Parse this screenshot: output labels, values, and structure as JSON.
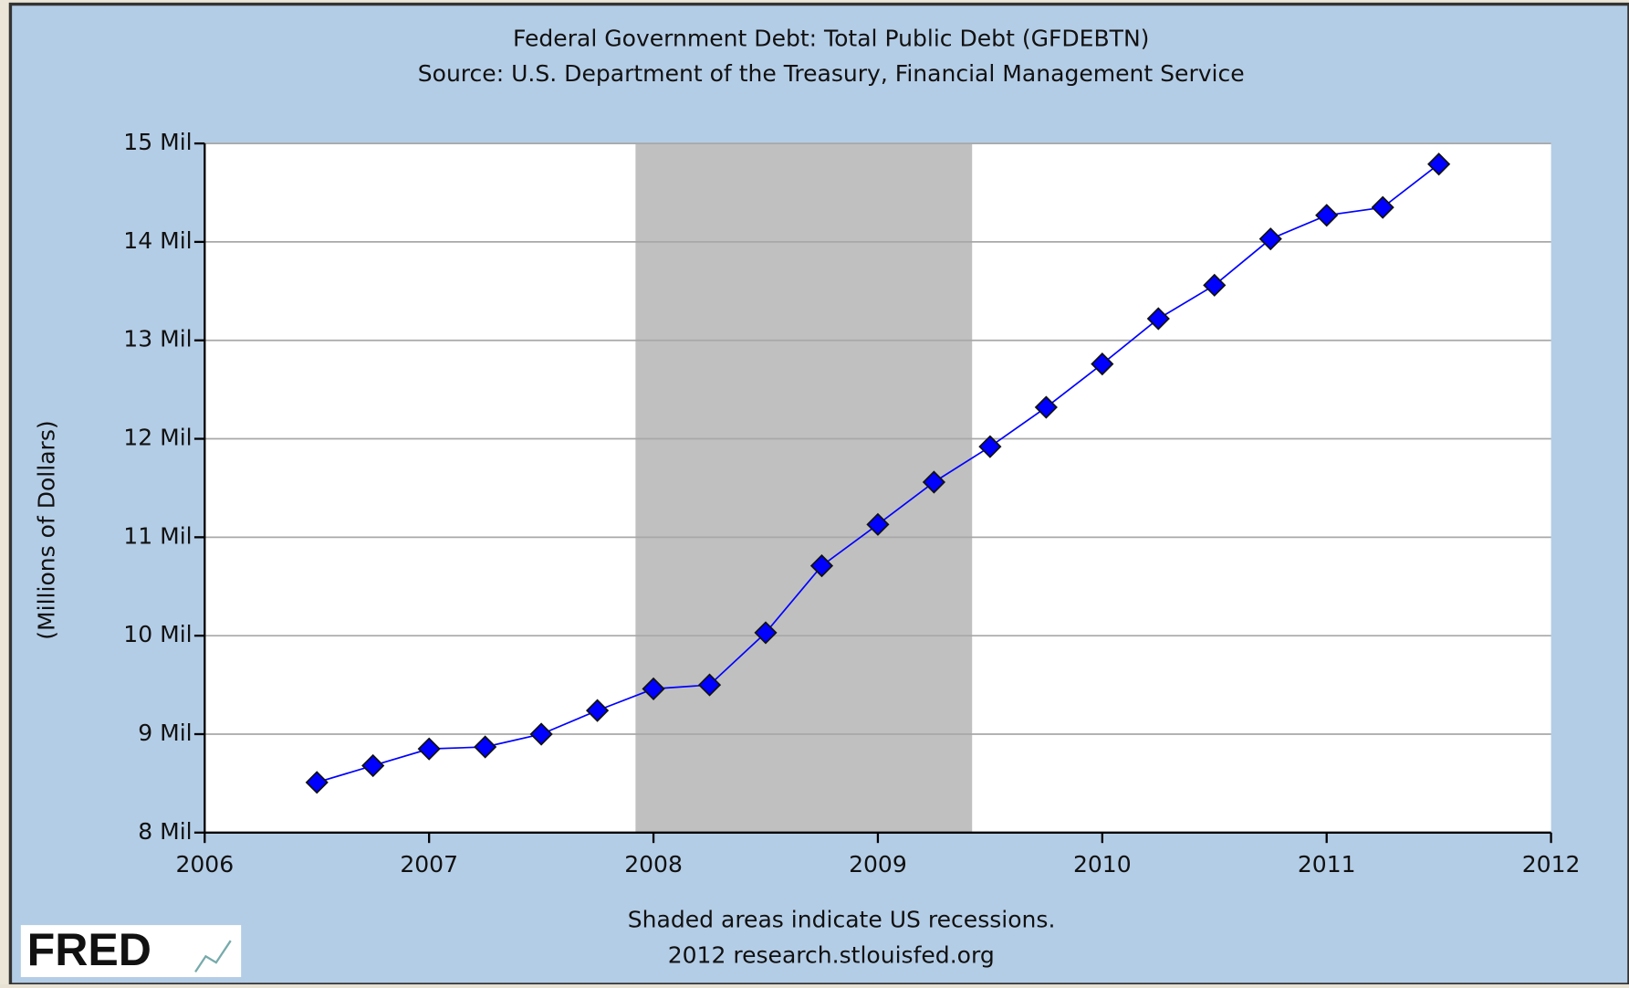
{
  "chart_data": {
    "type": "line",
    "title": "Federal Government Debt: Total Public Debt (GFDEBTN)",
    "subtitle": "Source: U.S. Department of the Treasury, Financial Management Service",
    "y_label": "(Millions of Dollars)",
    "notes": [
      "Shaded areas indicate US recessions.",
      "2012 research.stlouisfed.org"
    ],
    "logo": "FRED",
    "x": [
      2006.5,
      2006.75,
      2007.0,
      2007.25,
      2007.5,
      2007.75,
      2008.0,
      2008.25,
      2008.5,
      2008.75,
      2009.0,
      2009.25,
      2009.5,
      2009.75,
      2010.0,
      2010.25,
      2010.5,
      2010.75,
      2011.0,
      2011.25,
      2011.5
    ],
    "series": [
      {
        "name": "GFDEBTN",
        "color": "#0000ff",
        "values": [
          8.51,
          8.68,
          8.85,
          8.87,
          9.0,
          9.24,
          9.46,
          9.5,
          10.03,
          10.71,
          11.13,
          11.56,
          11.92,
          12.32,
          12.76,
          13.22,
          13.56,
          14.03,
          14.27,
          14.35,
          14.79
        ]
      }
    ],
    "recessions": [
      [
        2007.92,
        2009.42
      ]
    ],
    "recession_color": "#c0c0c0",
    "xlim": [
      2006,
      2012
    ],
    "xticks": [
      2006,
      2007,
      2008,
      2009,
      2010,
      2011,
      2012
    ],
    "ylim": [
      8,
      15
    ],
    "yticks": [
      {
        "value": 8,
        "label": "8 Mil"
      },
      {
        "value": 9,
        "label": "9 Mil"
      },
      {
        "value": 10,
        "label": "10 Mil"
      },
      {
        "value": 11,
        "label": "11 Mil"
      },
      {
        "value": 12,
        "label": "12 Mil"
      },
      {
        "value": 13,
        "label": "13 Mil"
      },
      {
        "value": 14,
        "label": "14 Mil"
      },
      {
        "value": 15,
        "label": "15 Mil"
      }
    ],
    "grid": true
  }
}
